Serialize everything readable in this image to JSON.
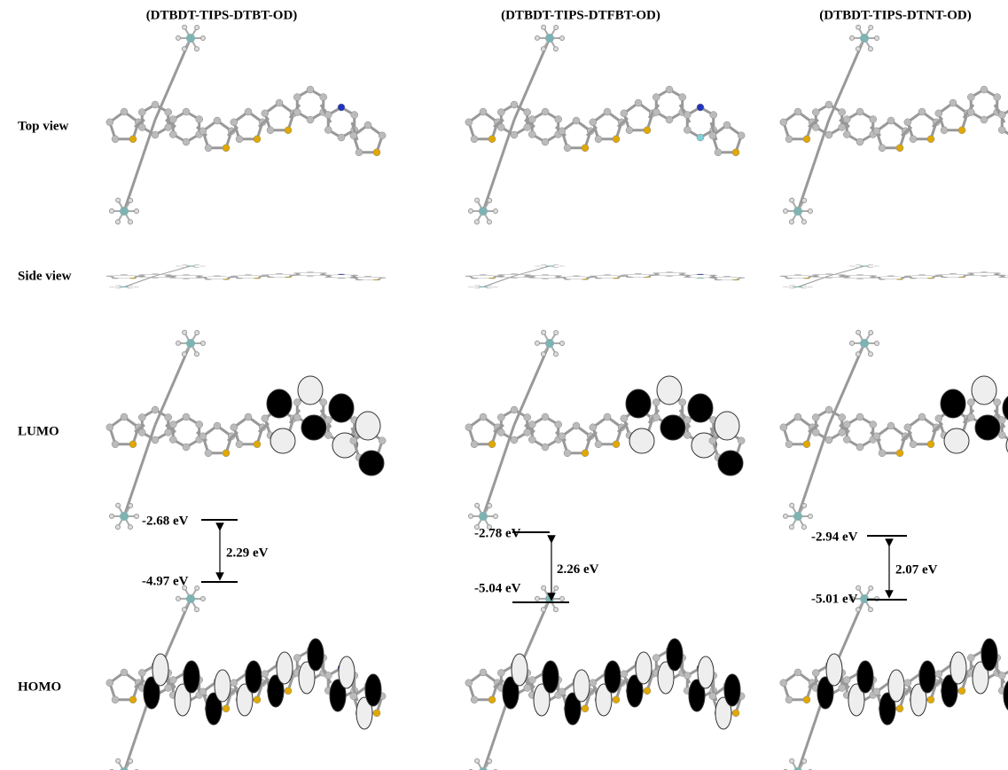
{
  "columns": [
    {
      "title": "(DTBDT-TIPS-DTBT-OD)",
      "lumo": "-2.68 eV",
      "homo": "-4.97 eV",
      "gap": "2.29 eV"
    },
    {
      "title": "(DTBDT-TIPS-DTFBT-OD)",
      "lumo": "-2.78 eV",
      "homo": "-5.04 eV",
      "gap": "2.26 eV"
    },
    {
      "title": "(DTBDT-TIPS-DTNT-OD)",
      "lumo": "-2.94 eV",
      "homo": "-5.01 eV",
      "gap": "2.07 eV"
    }
  ],
  "rows": [
    "Top view",
    "Side view",
    "LUMO",
    "HOMO"
  ]
}
